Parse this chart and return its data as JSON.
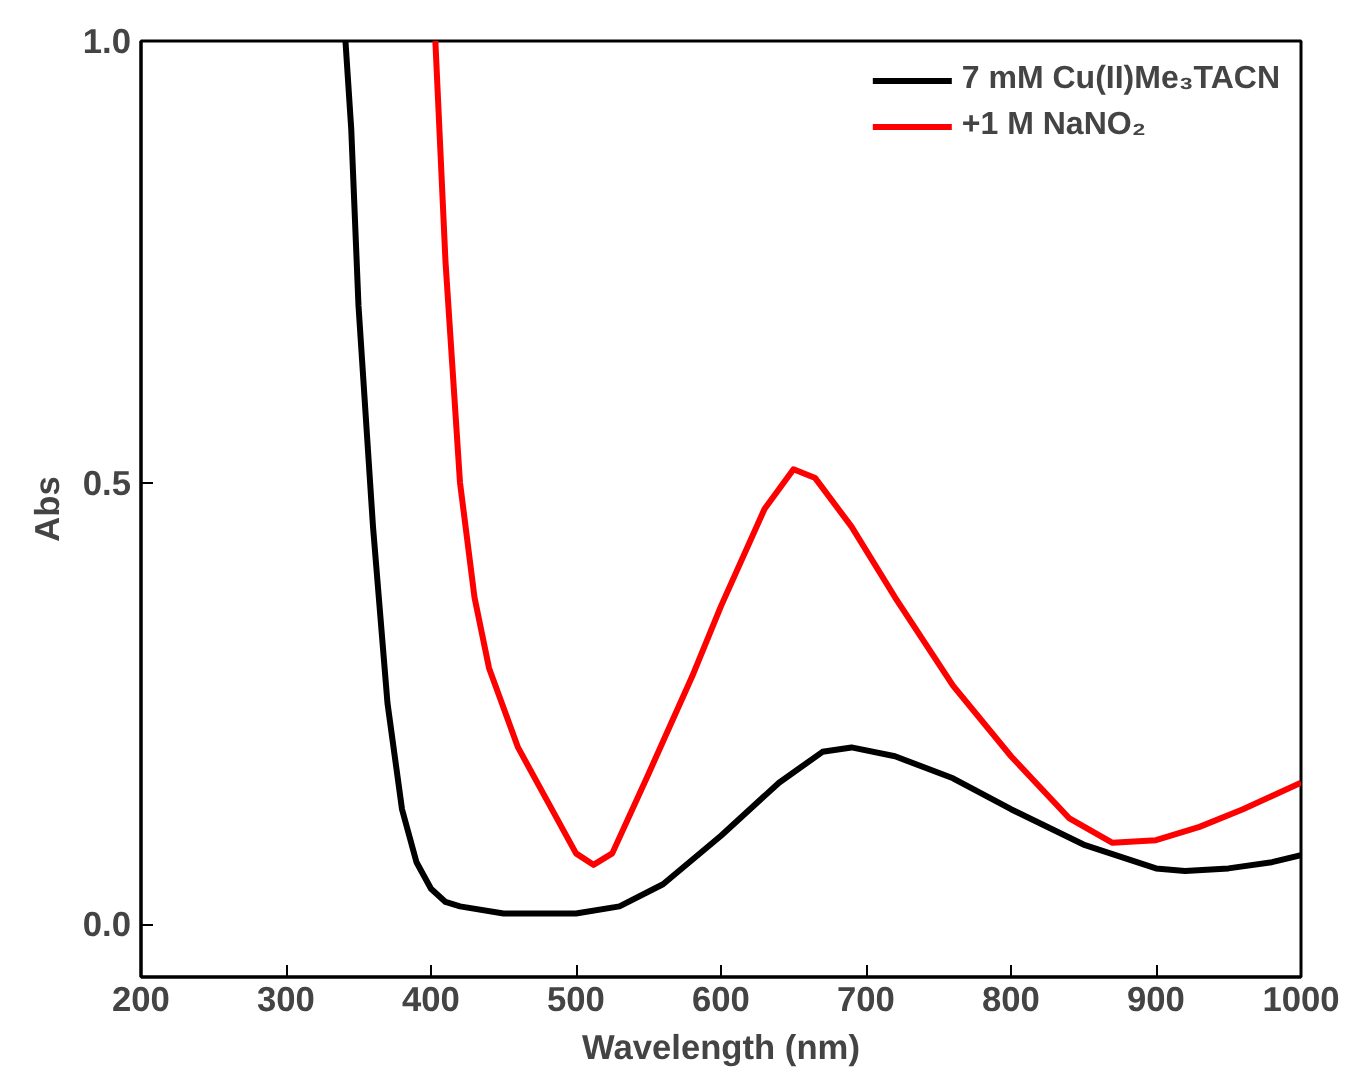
{
  "chart_data": {
    "type": "line",
    "xlabel": "Wavelength (nm)",
    "ylabel": "Abs",
    "xlim": [
      200,
      1000
    ],
    "ylim": [
      -0.06,
      1.0
    ],
    "xticks": [
      200,
      300,
      400,
      500,
      600,
      700,
      800,
      900,
      1000
    ],
    "yticks": [
      {
        "value": 0,
        "label": "0.0"
      },
      0.5,
      {
        "value": 1,
        "label": "1.0"
      }
    ],
    "grid": false,
    "legend": "top right",
    "line_style": "solid",
    "marker": "none",
    "series": [
      {
        "name": "7 mM Cu(II)Me₃TACN",
        "color": "#000000",
        "x": [
          341,
          345,
          350,
          360,
          370,
          380,
          390,
          400,
          410,
          420,
          450,
          500,
          530,
          560,
          600,
          640,
          670,
          690,
          720,
          760,
          800,
          850,
          900,
          920,
          950,
          980,
          1000
        ],
        "values": [
          1.0,
          0.9,
          0.7,
          0.45,
          0.25,
          0.13,
          0.07,
          0.04,
          0.025,
          0.02,
          0.012,
          0.012,
          0.02,
          0.045,
          0.1,
          0.16,
          0.195,
          0.2,
          0.19,
          0.165,
          0.13,
          0.09,
          0.063,
          0.06,
          0.063,
          0.07,
          0.078
        ]
      },
      {
        "name": "+1 M NaNO₂",
        "color": "#ff0000",
        "x": [
          403,
          410,
          420,
          430,
          440,
          460,
          480,
          500,
          512,
          525,
          550,
          580,
          600,
          630,
          650,
          665,
          690,
          720,
          760,
          800,
          840,
          870,
          900,
          930,
          960,
          980,
          1000
        ],
        "values": [
          1.0,
          0.75,
          0.5,
          0.37,
          0.29,
          0.2,
          0.14,
          0.08,
          0.067,
          0.08,
          0.17,
          0.28,
          0.36,
          0.47,
          0.515,
          0.505,
          0.45,
          0.37,
          0.27,
          0.19,
          0.12,
          0.092,
          0.095,
          0.11,
          0.13,
          0.145,
          0.16
        ]
      }
    ]
  }
}
